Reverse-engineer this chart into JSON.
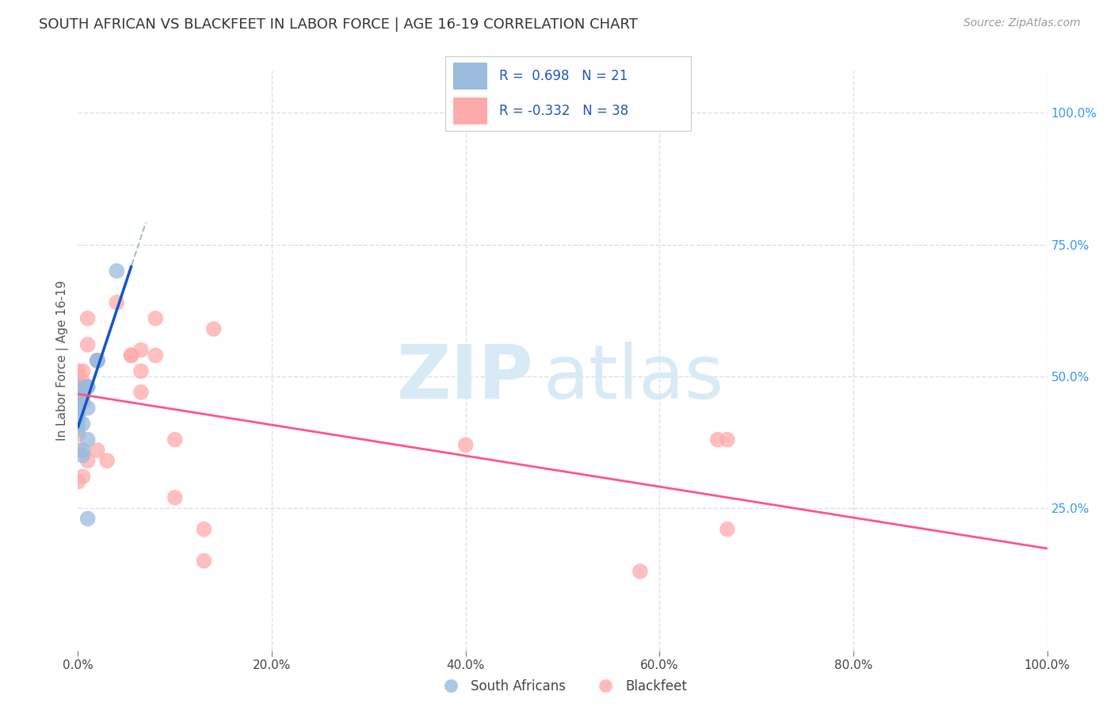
{
  "title": "SOUTH AFRICAN VS BLACKFEET IN LABOR FORCE | AGE 16-19 CORRELATION CHART",
  "source": "Source: ZipAtlas.com",
  "ylabel": "In Labor Force | Age 16-19",
  "xlim": [
    0.0,
    1.0
  ],
  "ylim": [
    -0.02,
    1.08
  ],
  "xticks": [
    0.0,
    0.2,
    0.4,
    0.6,
    0.8,
    1.0
  ],
  "yticks": [
    0.25,
    0.5,
    0.75,
    1.0
  ],
  "xtick_labels": [
    "0.0%",
    "20.0%",
    "40.0%",
    "60.0%",
    "80.0%",
    "100.0%"
  ],
  "ytick_labels_right": [
    "25.0%",
    "50.0%",
    "75.0%",
    "100.0%"
  ],
  "blue_color": "#99BBDD",
  "pink_color": "#FFAAAA",
  "blue_line_color": "#1155CC",
  "pink_line_color": "#FF5588",
  "dashed_line_color": "#AABBCC",
  "legend_R_color": "#2255BB",
  "R_blue": 0.698,
  "N_blue": 21,
  "R_pink": -0.332,
  "N_pink": 38,
  "south_african_x": [
    0.0,
    0.0,
    0.0,
    0.0,
    0.0,
    0.0,
    0.0,
    0.0,
    0.0,
    0.005,
    0.005,
    0.005,
    0.005,
    0.01,
    0.01,
    0.01,
    0.01,
    0.01,
    0.02,
    0.02,
    0.04
  ],
  "south_african_y": [
    0.43,
    0.44,
    0.45,
    0.46,
    0.47,
    0.48,
    0.42,
    0.41,
    0.4,
    0.46,
    0.41,
    0.36,
    0.35,
    0.48,
    0.48,
    0.44,
    0.38,
    0.23,
    0.53,
    0.53,
    0.7
  ],
  "blackfeet_x": [
    0.0,
    0.0,
    0.0,
    0.0,
    0.0,
    0.0,
    0.0,
    0.0,
    0.005,
    0.005,
    0.005,
    0.005,
    0.005,
    0.01,
    0.01,
    0.01,
    0.02,
    0.02,
    0.02,
    0.03,
    0.04,
    0.055,
    0.055,
    0.065,
    0.065,
    0.065,
    0.08,
    0.08,
    0.1,
    0.1,
    0.13,
    0.13,
    0.14,
    0.4,
    0.58,
    0.66,
    0.67,
    0.67
  ],
  "blackfeet_y": [
    0.49,
    0.5,
    0.5,
    0.51,
    0.46,
    0.39,
    0.36,
    0.3,
    0.51,
    0.49,
    0.48,
    0.45,
    0.31,
    0.61,
    0.56,
    0.34,
    0.53,
    0.53,
    0.36,
    0.34,
    0.64,
    0.54,
    0.54,
    0.55,
    0.51,
    0.47,
    0.61,
    0.54,
    0.38,
    0.27,
    0.21,
    0.15,
    0.59,
    0.37,
    0.13,
    0.38,
    0.38,
    0.21
  ],
  "background_color": "#FFFFFF",
  "grid_color": "#DDDDEE",
  "watermark_zip": "ZIP",
  "watermark_atlas": "atlas",
  "watermark_color": "#D8EAF5",
  "watermark_fontsize": 68
}
